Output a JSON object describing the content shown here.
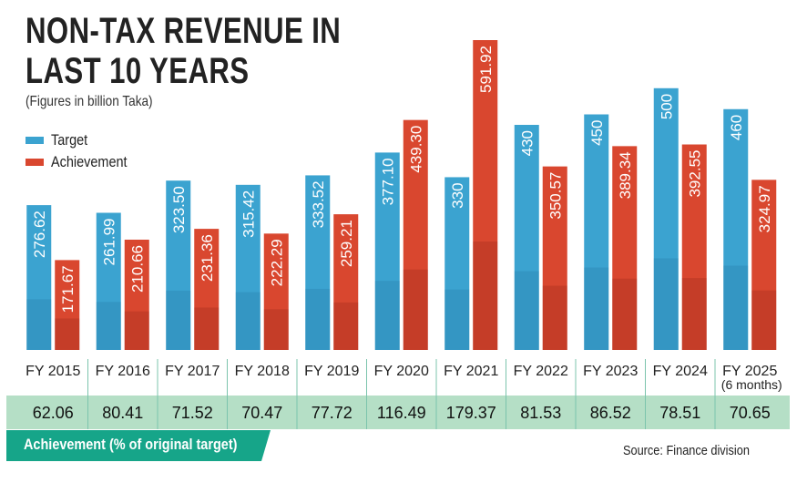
{
  "header": {
    "title_line1": "NON-TAX REVENUE IN",
    "title_line2": "LAST 10 YEARS",
    "subtitle": "(Figures in billion Taka)"
  },
  "legend": {
    "items": [
      {
        "label": "Target",
        "color": "#3ba3d0"
      },
      {
        "label": "Achievement",
        "color": "#d9472f"
      }
    ]
  },
  "footer": {
    "pct_caption": "Achievement (% of original target)",
    "source": "Source: Finance division"
  },
  "colors": {
    "target": "#3ba3d0",
    "achievement": "#d9472f",
    "pct_band": "#b5dfc6",
    "pct_banner": "#16a589",
    "divider": "#7cc4ad"
  },
  "chart_data": {
    "type": "bar",
    "title": "NON-TAX REVENUE IN LAST 10 YEARS",
    "subtitle": "(Figures in billion Taka)",
    "xlabel": "",
    "ylabel": "Billion Taka",
    "ylim": [
      0,
      620
    ],
    "grid": false,
    "legend_position": "top-left",
    "categories": [
      "FY 2015",
      "FY 2016",
      "FY 2017",
      "FY 2018",
      "FY 2019",
      "FY 2020",
      "FY 2021",
      "FY 2022",
      "FY 2023",
      "FY 2024",
      "FY 2025"
    ],
    "category_sublabels": [
      "",
      "",
      "",
      "",
      "",
      "",
      "",
      "",
      "",
      "",
      "(6 months)"
    ],
    "series": [
      {
        "name": "Target",
        "values": [
          276.62,
          261.99,
          323.5,
          315.42,
          333.52,
          377.1,
          330,
          430,
          450,
          500,
          460
        ],
        "labels": [
          "276.62",
          "261.99",
          "323.50",
          "315.42",
          "333.52",
          "377.10",
          "330",
          "430",
          "450",
          "500",
          "460"
        ]
      },
      {
        "name": "Achievement",
        "values": [
          171.67,
          210.66,
          231.36,
          222.29,
          259.21,
          439.3,
          591.92,
          350.57,
          389.34,
          392.55,
          324.97
        ],
        "labels": [
          "171.67",
          "210.66",
          "231.36",
          "222.29",
          "259.21",
          "439.30",
          "591.92",
          "350.57",
          "389.34",
          "392.55",
          "324.97"
        ]
      }
    ],
    "achievement_pct_of_target": {
      "label": "Achievement (% of original target)",
      "values": [
        "62.06",
        "80.41",
        "71.52",
        "70.47",
        "77.72",
        "116.49",
        "179.37",
        "81.53",
        "86.52",
        "78.51",
        "70.65"
      ]
    },
    "source": "Source: Finance division"
  }
}
